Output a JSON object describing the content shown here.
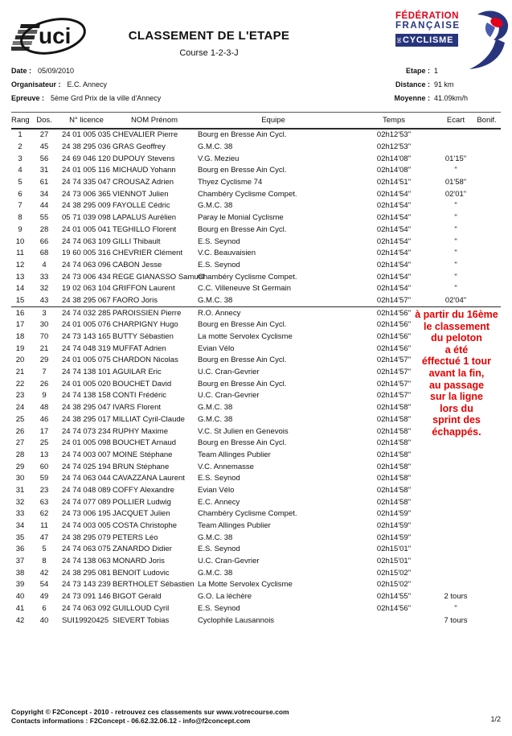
{
  "colors": {
    "annotation_red": "#e60000",
    "ffc_red": "#e2001a",
    "ffc_blue": "#28357e",
    "text": "#111111"
  },
  "header": {
    "title": "CLASSEMENT DE L'ETAPE",
    "subtitle": "Course 1-2-3-J",
    "uci_logo_text": "uci",
    "ffc": {
      "line1": "FÉDÉRATION",
      "line2": "FRANÇAISE",
      "de": "DE",
      "line3": "CYCLISME"
    }
  },
  "meta": {
    "left": [
      {
        "label": "Date :",
        "value": "05/09/2010"
      },
      {
        "label": "Organisateur :",
        "value": "E.C. Annecy"
      },
      {
        "label": "Epreuve :",
        "value": "5ème Grd Prix de la ville d'Annecy"
      }
    ],
    "right": [
      {
        "label": "Etape :",
        "value": "1"
      },
      {
        "label": "Distance :",
        "value": "91 km"
      },
      {
        "label": "Moyenne :",
        "value": "41.09km/h"
      }
    ]
  },
  "table": {
    "columns": [
      "Rang",
      "Dos.",
      "N° licence",
      "NOM Prénom",
      "Equipe",
      "Temps",
      "Ecart",
      "Bonif."
    ],
    "rows": [
      {
        "rang": "1",
        "dos": "27",
        "licence": "24 01 005 035",
        "nom": "CHEVALIER Pierre",
        "equipe": "Bourg en Bresse Ain Cycl.",
        "temps": "02h12'53\"",
        "ecart": "",
        "bonif": ""
      },
      {
        "rang": "2",
        "dos": "45",
        "licence": "24 38 295 036",
        "nom": "GRAS Geoffrey",
        "equipe": "G.M.C. 38",
        "temps": "02h12'53\"",
        "ecart": "",
        "bonif": ""
      },
      {
        "rang": "3",
        "dos": "56",
        "licence": "24 69 046 120",
        "nom": "DUPOUY Stevens",
        "equipe": "V.G. Mezieu",
        "temps": "02h14'08\"",
        "ecart": "01'15\"",
        "bonif": ""
      },
      {
        "rang": "4",
        "dos": "31",
        "licence": "24 01 005 116",
        "nom": "MICHAUD Yohann",
        "equipe": "Bourg en Bresse Ain Cycl.",
        "temps": "02h14'08\"",
        "ecart": "\"",
        "bonif": ""
      },
      {
        "rang": "5",
        "dos": "61",
        "licence": "24 74 335 047",
        "nom": "CROUSAZ Adrien",
        "equipe": "Thyez Cyclisme 74",
        "temps": "02h14'51\"",
        "ecart": "01'58\"",
        "bonif": ""
      },
      {
        "rang": "6",
        "dos": "34",
        "licence": "24 73 006 365",
        "nom": "VIENNOT Julien",
        "equipe": "Chambéry Cyclisme Compet.",
        "temps": "02h14'54\"",
        "ecart": "02'01\"",
        "bonif": ""
      },
      {
        "rang": "7",
        "dos": "44",
        "licence": "24 38 295 009",
        "nom": "FAYOLLE Cédric",
        "equipe": "G.M.C. 38",
        "temps": "02h14'54\"",
        "ecart": "\"",
        "bonif": ""
      },
      {
        "rang": "8",
        "dos": "55",
        "licence": "05 71 039 098",
        "nom": "LAPALUS Aurélien",
        "equipe": "Paray le Monial Cyclisme",
        "temps": "02h14'54\"",
        "ecart": "\"",
        "bonif": ""
      },
      {
        "rang": "9",
        "dos": "28",
        "licence": "24 01 005 041",
        "nom": "TEGHILLO Florent",
        "equipe": "Bourg en Bresse Ain Cycl.",
        "temps": "02h14'54\"",
        "ecart": "\"",
        "bonif": ""
      },
      {
        "rang": "10",
        "dos": "66",
        "licence": "24 74 063 109",
        "nom": "GILLI Thibault",
        "equipe": "E.S. Seynod",
        "temps": "02h14'54\"",
        "ecart": "\"",
        "bonif": ""
      },
      {
        "rang": "11",
        "dos": "68",
        "licence": "19 60 005 316",
        "nom": "CHEVRIER Clément",
        "equipe": "V.C. Beauvaisien",
        "temps": "02h14'54\"",
        "ecart": "\"",
        "bonif": ""
      },
      {
        "rang": "12",
        "dos": "4",
        "licence": "24 74 063 096",
        "nom": "CABON Jesse",
        "equipe": "E.S. Seynod",
        "temps": "02h14'54\"",
        "ecart": "\"",
        "bonif": ""
      },
      {
        "rang": "13",
        "dos": "33",
        "licence": "24 73 006 434",
        "nom": "REGE GIANASSO Samuel",
        "equipe": "Chambéry Cyclisme Compet.",
        "temps": "02h14'54\"",
        "ecart": "\"",
        "bonif": ""
      },
      {
        "rang": "14",
        "dos": "32",
        "licence": "19 02 063 104",
        "nom": "GRIFFON Laurent",
        "equipe": "C.C. Villeneuve St Germain",
        "temps": "02h14'54\"",
        "ecart": "\"",
        "bonif": ""
      },
      {
        "rang": "15",
        "dos": "43",
        "licence": "24 38 295 067",
        "nom": "FAORO Joris",
        "equipe": "G.M.C. 38",
        "temps": "02h14'57\"",
        "ecart": "02'04\"",
        "bonif": "",
        "separator_after": true
      },
      {
        "rang": "16",
        "dos": "3",
        "licence": "24 74 032 285",
        "nom": "PAROISSIEN Pierre",
        "equipe": "R.O. Annecy",
        "temps": "02h14'56\"",
        "ecart": "",
        "bonif": ""
      },
      {
        "rang": "17",
        "dos": "30",
        "licence": "24 01 005 076",
        "nom": "CHARPIGNY Hugo",
        "equipe": "Bourg en Bresse Ain Cycl.",
        "temps": "02h14'56\"",
        "ecart": "",
        "bonif": ""
      },
      {
        "rang": "18",
        "dos": "70",
        "licence": "24 73 143 165",
        "nom": "BUTTY Sébastien",
        "equipe": "La motte Servolex Cyclisme",
        "temps": "02h14'56\"",
        "ecart": "",
        "bonif": ""
      },
      {
        "rang": "19",
        "dos": "21",
        "licence": "24 74 048 319",
        "nom": "MUFFAT Adrien",
        "equipe": "Evian Vélo",
        "temps": "02h14'56\"",
        "ecart": "",
        "bonif": ""
      },
      {
        "rang": "20",
        "dos": "29",
        "licence": "24 01 005 075",
        "nom": "CHARDON Nicolas",
        "equipe": "Bourg en Bresse Ain Cycl.",
        "temps": "02h14'57\"",
        "ecart": "",
        "bonif": ""
      },
      {
        "rang": "21",
        "dos": "7",
        "licence": "24 74 138 101",
        "nom": "AGUILAR Eric",
        "equipe": "U.C. Cran-Gevrier",
        "temps": "02h14'57\"",
        "ecart": "",
        "bonif": ""
      },
      {
        "rang": "22",
        "dos": "26",
        "licence": "24 01 005 020",
        "nom": "BOUCHET David",
        "equipe": "Bourg en Bresse Ain Cycl.",
        "temps": "02h14'57\"",
        "ecart": "",
        "bonif": ""
      },
      {
        "rang": "23",
        "dos": "9",
        "licence": "24 74 138 158",
        "nom": "CONTI Frédéric",
        "equipe": "U.C. Cran-Gevrier",
        "temps": "02h14'57\"",
        "ecart": "",
        "bonif": ""
      },
      {
        "rang": "24",
        "dos": "48",
        "licence": "24 38 295 047",
        "nom": "IVARS Florent",
        "equipe": "G.M.C. 38",
        "temps": "02h14'58\"",
        "ecart": "",
        "bonif": ""
      },
      {
        "rang": "25",
        "dos": "46",
        "licence": "24 38 295 017",
        "nom": "MILLIAT Cyril-Claude",
        "equipe": "G.M.C. 38",
        "temps": "02h14'58\"",
        "ecart": "",
        "bonif": ""
      },
      {
        "rang": "26",
        "dos": "17",
        "licence": "24 74 073 234",
        "nom": "RUPHY Maxime",
        "equipe": "V.C. St Julien en Genevois",
        "temps": "02h14'58\"",
        "ecart": "",
        "bonif": ""
      },
      {
        "rang": "27",
        "dos": "25",
        "licence": "24 01 005 098",
        "nom": "BOUCHET Arnaud",
        "equipe": "Bourg en Bresse Ain Cycl.",
        "temps": "02h14'58\"",
        "ecart": "",
        "bonif": ""
      },
      {
        "rang": "28",
        "dos": "13",
        "licence": "24 74 003 007",
        "nom": "MOINE Stéphane",
        "equipe": "Team Allinges Publier",
        "temps": "02h14'58\"",
        "ecart": "",
        "bonif": ""
      },
      {
        "rang": "29",
        "dos": "60",
        "licence": "24 74 025 194",
        "nom": "BRUN Stéphane",
        "equipe": "V.C. Annemasse",
        "temps": "02h14'58\"",
        "ecart": "",
        "bonif": ""
      },
      {
        "rang": "30",
        "dos": "59",
        "licence": "24 74 063 044",
        "nom": "CAVAZZANA Laurent",
        "equipe": "E.S. Seynod",
        "temps": "02h14'58\"",
        "ecart": "",
        "bonif": ""
      },
      {
        "rang": "31",
        "dos": "23",
        "licence": "24 74 048 089",
        "nom": "COFFY Alexandre",
        "equipe": "Evian Vélo",
        "temps": "02h14'58\"",
        "ecart": "",
        "bonif": ""
      },
      {
        "rang": "32",
        "dos": "63",
        "licence": "24 74 077 089",
        "nom": "POLLIER Ludwig",
        "equipe": "E.C. Annecy",
        "temps": "02h14'58\"",
        "ecart": "",
        "bonif": ""
      },
      {
        "rang": "33",
        "dos": "62",
        "licence": "24 73 006 195",
        "nom": "JACQUET Julien",
        "equipe": "Chambéry Cyclisme Compet.",
        "temps": "02h14'59\"",
        "ecart": "",
        "bonif": ""
      },
      {
        "rang": "34",
        "dos": "11",
        "licence": "24 74 003 005",
        "nom": "COSTA Christophe",
        "equipe": "Team Allinges Publier",
        "temps": "02h14'59\"",
        "ecart": "",
        "bonif": ""
      },
      {
        "rang": "35",
        "dos": "47",
        "licence": "24 38 295 079",
        "nom": "PETERS Léo",
        "equipe": "G.M.C. 38",
        "temps": "02h14'59\"",
        "ecart": "",
        "bonif": ""
      },
      {
        "rang": "36",
        "dos": "5",
        "licence": "24 74 063 075",
        "nom": "ZANARDO Didier",
        "equipe": "E.S. Seynod",
        "temps": "02h15'01\"",
        "ecart": "",
        "bonif": ""
      },
      {
        "rang": "37",
        "dos": "8",
        "licence": "24 74 138 063",
        "nom": "MONARD Joris",
        "equipe": "U.C. Cran-Gevrier",
        "temps": "02h15'01\"",
        "ecart": "",
        "bonif": ""
      },
      {
        "rang": "38",
        "dos": "42",
        "licence": "24 38 295 081",
        "nom": "BENOIT Ludovic",
        "equipe": "G.M.C. 38",
        "temps": "02h15'02\"",
        "ecart": "",
        "bonif": ""
      },
      {
        "rang": "39",
        "dos": "54",
        "licence": "24 73 143 239",
        "nom": "BERTHOLET Sébastien",
        "equipe": "La Motte Servolex Cyclisme",
        "temps": "02h15'02\"",
        "ecart": "",
        "bonif": ""
      },
      {
        "rang": "40",
        "dos": "49",
        "licence": "24 73 091 146",
        "nom": "BIGOT Gérald",
        "equipe": "G.O. La léchère",
        "temps": "02h14'55\"",
        "ecart": "2 tours",
        "bonif": ""
      },
      {
        "rang": "41",
        "dos": "6",
        "licence": "24 74 063 092",
        "nom": "GUILLOUD Cyril",
        "equipe": "E.S. Seynod",
        "temps": "02h14'56\"",
        "ecart": "\"",
        "bonif": ""
      },
      {
        "rang": "42",
        "dos": "40",
        "licence": "SUI19920425",
        "nom": "SIEVERT Tobias",
        "equipe": "Cyclophile Lausannois",
        "temps": "",
        "ecart": "7 tours",
        "bonif": ""
      }
    ]
  },
  "annotation": {
    "text": "à partir du 16ème\nle classement\ndu peloton\na été\néffectué 1 tour\navant la fin,\nau passage\nsur la ligne\nlors du\nsprint des\néchappés.",
    "color": "#e60000"
  },
  "footer": {
    "line1": "Copyright © F2Concept - 2010 - retrouvez ces classements sur www.votrecourse.com",
    "line2": "Contacts informations : F2Concept - 06.62.32.06.12 - info@f2concept.com",
    "page": "1/2"
  }
}
